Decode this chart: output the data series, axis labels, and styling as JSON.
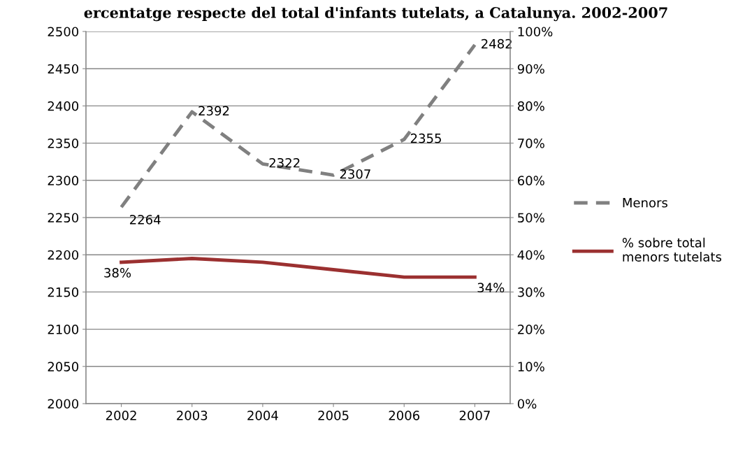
{
  "chart_data": {
    "type": "line",
    "title": "ercentatge respecte del total d'infants tutelats, a Catalunya. 2002-2007",
    "categories": [
      "2002",
      "2003",
      "2004",
      "2005",
      "2006",
      "2007"
    ],
    "series": [
      {
        "name": "Menors",
        "color": "#808080",
        "line_style": "dashed",
        "values": [
          2264,
          2392,
          2322,
          2307,
          2355,
          2482
        ],
        "value_labels": [
          "2264",
          "2392",
          "2322",
          "2307",
          "2355",
          "2482"
        ]
      },
      {
        "name": "% sobre total\nmenors tutelats",
        "color": "#9b3030",
        "line_style": "solid",
        "axis": "y2",
        "values": [
          38,
          39,
          38,
          36,
          34,
          34
        ],
        "value_labels": [
          "38%",
          null,
          null,
          null,
          null,
          "34%"
        ]
      }
    ],
    "ylim": [
      2000,
      2500
    ],
    "yticks": [
      2000,
      2050,
      2100,
      2150,
      2200,
      2250,
      2300,
      2350,
      2400,
      2450,
      2500
    ],
    "y2lim": [
      0,
      100
    ],
    "y2ticks": [
      {
        "value": 0,
        "label": "0%"
      },
      {
        "value": 10,
        "label": "10%"
      },
      {
        "value": 20,
        "label": "20%"
      },
      {
        "value": 30,
        "label": "30%"
      },
      {
        "value": 40,
        "label": "40%"
      },
      {
        "value": 50,
        "label": "50%"
      },
      {
        "value": 60,
        "label": "60%"
      },
      {
        "value": 70,
        "label": "70%"
      },
      {
        "value": 80,
        "label": "80%"
      },
      {
        "value": 90,
        "label": "90%"
      },
      {
        "value": 100,
        "label": "100%"
      }
    ],
    "grid": "y",
    "legend": "right",
    "marker": "none"
  }
}
